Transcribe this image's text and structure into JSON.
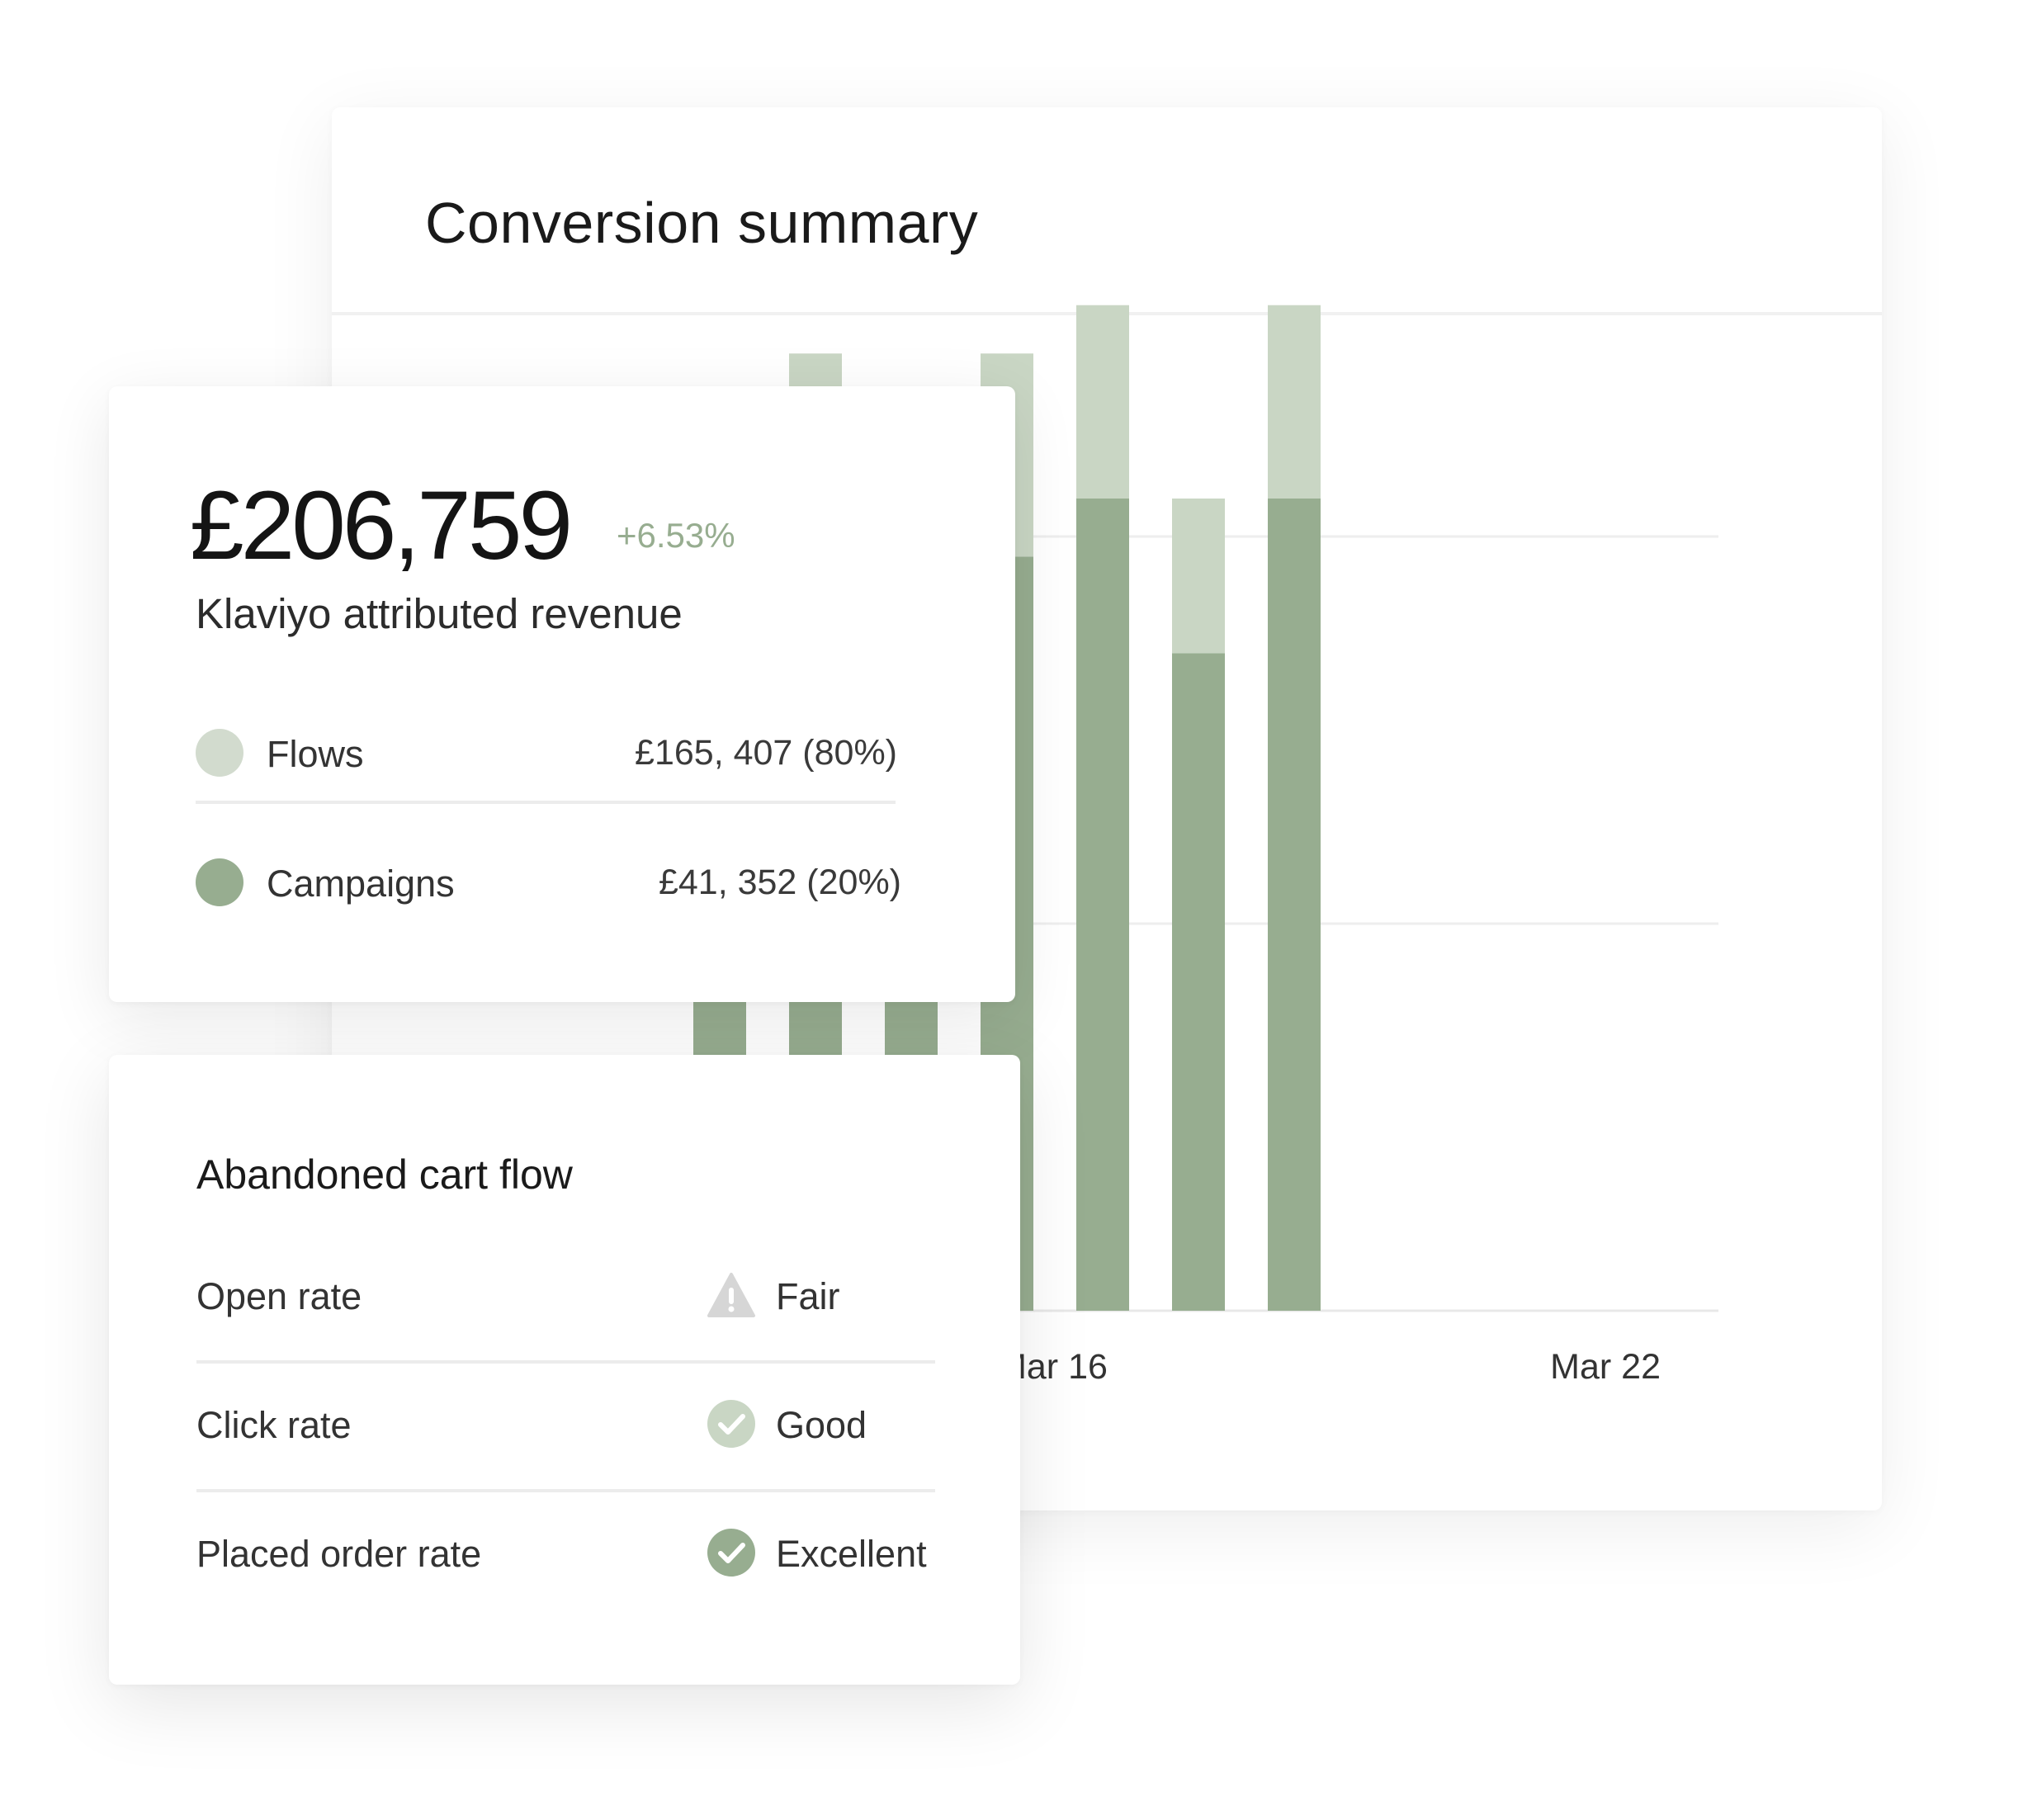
{
  "conversion_summary": {
    "title": "Conversion summary"
  },
  "chart_data": {
    "type": "bar",
    "stacked": true,
    "x_tick_labels": [
      "Mar 16",
      "Mar 22"
    ],
    "series": [
      {
        "name": "Campaigns",
        "color": "#97ad90",
        "values": [
          8,
          8,
          8,
          8,
          8,
          58,
          78,
          68,
          78,
          84,
          68,
          84
        ]
      },
      {
        "name": "Flows",
        "color": "#c9d6c4",
        "values": [
          0,
          0,
          0,
          0,
          0,
          14,
          21,
          16,
          21,
          20,
          16,
          20
        ]
      }
    ],
    "ylim": [
      0,
      112
    ],
    "grid": true
  },
  "revenue": {
    "total": "£206,759",
    "change": "+6.53%",
    "label": "Klaviyo attributed revenue",
    "legend": [
      {
        "name": "Flows",
        "value": "£165, 407 (80%)",
        "color": "#d2dbce"
      },
      {
        "name": "Campaigns",
        "value": "£41, 352 (20%)",
        "color": "#97ad90"
      }
    ]
  },
  "abandoned_cart": {
    "title": "Abandoned cart flow",
    "metrics": [
      {
        "label": "Open rate",
        "status": "Fair",
        "icon": "warning-triangle-icon"
      },
      {
        "label": "Click rate",
        "status": "Good",
        "icon": "check-circle-light-icon"
      },
      {
        "label": "Placed order rate",
        "status": "Excellent",
        "icon": "check-circle-icon"
      }
    ]
  }
}
